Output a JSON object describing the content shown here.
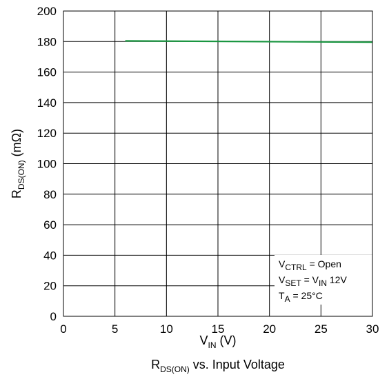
{
  "chart_data": {
    "type": "line",
    "xlabel": {
      "main": "V",
      "sub": "IN",
      "suffix": " (V)"
    },
    "ylabel": {
      "main": "R",
      "sub": "DS(ON)",
      "suffix": " (mΩ)"
    },
    "xlim": [
      0,
      30
    ],
    "ylim": [
      0,
      200
    ],
    "xticks": [
      0,
      5,
      10,
      15,
      20,
      25,
      30
    ],
    "yticks": [
      0,
      20,
      40,
      60,
      80,
      100,
      120,
      140,
      160,
      180,
      200
    ],
    "grid": true,
    "series": [
      {
        "color": "#1a9641",
        "x": [
          6,
          30
        ],
        "y": [
          180.4,
          179.6
        ]
      }
    ],
    "conditions": [
      {
        "parts": [
          {
            "t": "V"
          },
          {
            "t": "CTRL",
            "sub": true
          },
          {
            "t": " = Open"
          }
        ]
      },
      {
        "parts": [
          {
            "t": "V"
          },
          {
            "t": "SET",
            "sub": true
          },
          {
            "t": " = V"
          },
          {
            "t": "IN",
            "sub": true
          },
          {
            "t": " 12V"
          }
        ]
      },
      {
        "parts": [
          {
            "t": "T"
          },
          {
            "t": "A",
            "sub": true
          },
          {
            "t": " = 25°C"
          }
        ]
      }
    ],
    "caption": {
      "main": "R",
      "sub": "DS(ON)",
      "suffix": " vs. Input Voltage"
    }
  }
}
